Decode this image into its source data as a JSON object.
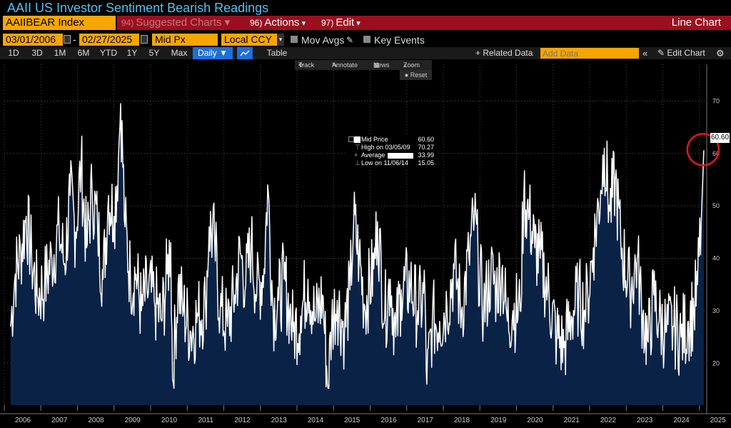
{
  "title": "AAII US Investor Sentiment Bearish Readings",
  "toolbar": {
    "ticker": "AAIIBEAR Index",
    "suggested": {
      "num": "94)",
      "label": "Suggested Charts"
    },
    "actions": {
      "num": "96)",
      "label": "Actions"
    },
    "edit": {
      "num": "97)",
      "label": "Edit"
    },
    "chart_type": "Line Chart"
  },
  "controls": {
    "start_date": "03/01/2006",
    "end_date": "02/27/2025",
    "price_field": "Mid Px",
    "currency": "Local CCY",
    "mov_avgs": "Mov Avgs",
    "key_events": "Key Events"
  },
  "timeframes": [
    "1D",
    "3D",
    "1M",
    "6M",
    "YTD",
    "1Y",
    "5Y",
    "Max"
  ],
  "periodicity": "Daily",
  "table_label": "Table",
  "related_data": "+ Related Data",
  "add_data_placeholder": "Add Data",
  "edit_chart": "Edit Chart",
  "chart_tools": {
    "track": "Track",
    "annotate": "Annotate",
    "news": "News",
    "zoom": "Zoom",
    "reset": "Reset"
  },
  "legend": {
    "mid_price_label": "Mid Price",
    "mid_price_value": "60.60",
    "high_label": "High on 03/05/09",
    "high_value": "70.27",
    "average_label": "Average",
    "average_value": "33.99",
    "low_label": "Low on 11/06/14",
    "low_value": "15.05"
  },
  "last_value_tag": "60.60",
  "colors": {
    "line": "#ffffff",
    "fill": "#0a2246",
    "accent": "#f7a600",
    "highlight_circle": "#e8141e",
    "title": "#4fc3f7"
  },
  "chart_data": {
    "type": "area",
    "series": [
      {
        "name": "Mid Price"
      }
    ],
    "x_unit": "year (weekly readings)",
    "y_range": [
      12,
      77
    ],
    "y_ticks": [
      20,
      30,
      40,
      50,
      60,
      70
    ],
    "x_ticks": [
      "2006",
      "2007",
      "2008",
      "2009",
      "2010",
      "2011",
      "2012",
      "2013",
      "2014",
      "2015",
      "2016",
      "2017",
      "2018",
      "2019",
      "2020",
      "2021",
      "2022",
      "2023",
      "2024",
      "2025"
    ],
    "x_range": [
      2006.0,
      2025.2
    ],
    "grid": true,
    "points": [
      [
        2006.17,
        27
      ],
      [
        2006.3,
        37
      ],
      [
        2006.45,
        41
      ],
      [
        2006.6,
        48
      ],
      [
        2006.75,
        40
      ],
      [
        2006.9,
        33
      ],
      [
        2007.1,
        35
      ],
      [
        2007.3,
        40
      ],
      [
        2007.5,
        45
      ],
      [
        2007.65,
        39
      ],
      [
        2007.8,
        52
      ],
      [
        2007.95,
        45
      ],
      [
        2008.1,
        58
      ],
      [
        2008.25,
        42
      ],
      [
        2008.4,
        53
      ],
      [
        2008.55,
        46
      ],
      [
        2008.7,
        36
      ],
      [
        2008.85,
        52
      ],
      [
        2009.0,
        48
      ],
      [
        2009.12,
        59
      ],
      [
        2009.18,
        70.27
      ],
      [
        2009.3,
        46
      ],
      [
        2009.45,
        36
      ],
      [
        2009.6,
        37
      ],
      [
        2009.75,
        30
      ],
      [
        2009.9,
        34
      ],
      [
        2010.1,
        32
      ],
      [
        2010.3,
        28
      ],
      [
        2010.45,
        37
      ],
      [
        2010.55,
        43
      ],
      [
        2010.6,
        17
      ],
      [
        2010.75,
        35
      ],
      [
        2010.9,
        30
      ],
      [
        2011.1,
        26
      ],
      [
        2011.3,
        29
      ],
      [
        2011.5,
        31
      ],
      [
        2011.6,
        46
      ],
      [
        2011.75,
        43
      ],
      [
        2011.9,
        30
      ],
      [
        2012.1,
        27
      ],
      [
        2012.3,
        33
      ],
      [
        2012.45,
        41
      ],
      [
        2012.6,
        35
      ],
      [
        2012.75,
        43
      ],
      [
        2012.9,
        33
      ],
      [
        2013.1,
        38
      ],
      [
        2013.2,
        54
      ],
      [
        2013.35,
        30
      ],
      [
        2013.5,
        32
      ],
      [
        2013.65,
        36
      ],
      [
        2013.8,
        30
      ],
      [
        2013.9,
        26
      ],
      [
        2014.1,
        29
      ],
      [
        2014.3,
        36
      ],
      [
        2014.5,
        28
      ],
      [
        2014.7,
        33
      ],
      [
        2014.85,
        15.05
      ],
      [
        2014.95,
        28
      ],
      [
        2015.1,
        32
      ],
      [
        2015.3,
        26
      ],
      [
        2015.45,
        34
      ],
      [
        2015.55,
        47
      ],
      [
        2015.7,
        40
      ],
      [
        2015.85,
        31
      ],
      [
        2016.1,
        38
      ],
      [
        2016.2,
        47
      ],
      [
        2016.4,
        29
      ],
      [
        2016.55,
        36
      ],
      [
        2016.7,
        25
      ],
      [
        2016.85,
        34
      ],
      [
        2017.1,
        35
      ],
      [
        2017.3,
        30
      ],
      [
        2017.5,
        33
      ],
      [
        2017.55,
        16
      ],
      [
        2017.7,
        28
      ],
      [
        2017.9,
        28
      ],
      [
        2018.1,
        31
      ],
      [
        2018.3,
        38
      ],
      [
        2018.5,
        30
      ],
      [
        2018.7,
        40
      ],
      [
        2018.85,
        48
      ],
      [
        2018.95,
        40
      ],
      [
        2019.1,
        30
      ],
      [
        2019.3,
        37
      ],
      [
        2019.45,
        34
      ],
      [
        2019.6,
        38
      ],
      [
        2019.75,
        28
      ],
      [
        2019.9,
        30
      ],
      [
        2020.1,
        30
      ],
      [
        2020.2,
        52
      ],
      [
        2020.35,
        48
      ],
      [
        2020.5,
        42
      ],
      [
        2020.65,
        40
      ],
      [
        2020.85,
        34
      ],
      [
        2021.1,
        25
      ],
      [
        2021.3,
        23
      ],
      [
        2021.5,
        29
      ],
      [
        2021.7,
        33
      ],
      [
        2021.85,
        30
      ],
      [
        2021.95,
        33
      ],
      [
        2022.1,
        42
      ],
      [
        2022.3,
        53
      ],
      [
        2022.4,
        61
      ],
      [
        2022.55,
        49
      ],
      [
        2022.7,
        55
      ],
      [
        2022.85,
        43
      ],
      [
        2023.1,
        34
      ],
      [
        2023.3,
        40
      ],
      [
        2023.45,
        29
      ],
      [
        2023.6,
        24
      ],
      [
        2023.75,
        33
      ],
      [
        2023.9,
        28
      ],
      [
        2024.1,
        26
      ],
      [
        2024.3,
        27
      ],
      [
        2024.5,
        25
      ],
      [
        2024.7,
        28
      ],
      [
        2024.85,
        30
      ],
      [
        2024.95,
        35
      ],
      [
        2025.05,
        47
      ],
      [
        2025.12,
        60.6
      ]
    ]
  }
}
